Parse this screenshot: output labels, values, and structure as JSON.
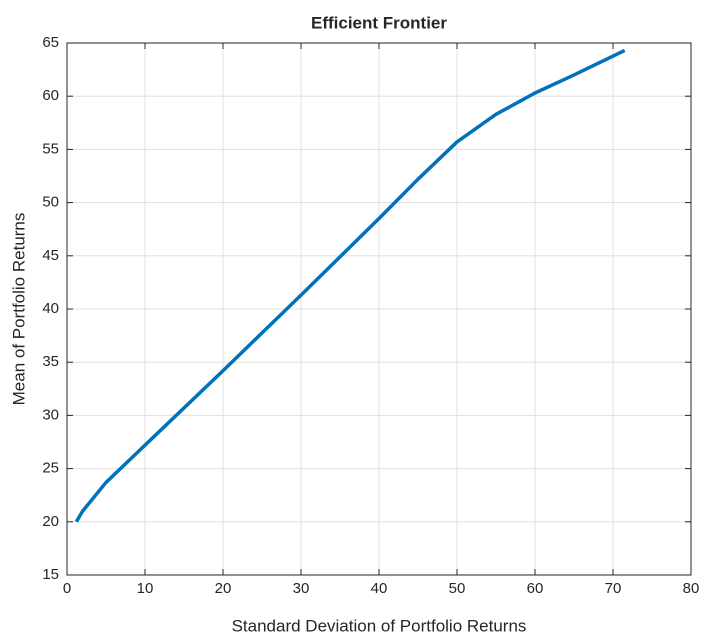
{
  "chart_data": {
    "type": "line",
    "title": "Efficient Frontier",
    "xlabel": "Standard Deviation of Portfolio Returns",
    "ylabel": "Mean of Portfolio Returns",
    "x": [
      1.2,
      2,
      5,
      10,
      20,
      30,
      40,
      45,
      50,
      55,
      60,
      65,
      71.5
    ],
    "values": [
      20,
      21,
      23.7,
      27.2,
      34.2,
      41.3,
      48.5,
      52.2,
      55.7,
      58.3,
      60.3,
      62,
      64.3
    ],
    "color": "#0072bd",
    "xlim": [
      0,
      80
    ],
    "xticks": [
      0,
      10,
      20,
      30,
      40,
      50,
      60,
      70,
      80
    ],
    "ylim": [
      15,
      65
    ],
    "yticks": [
      15,
      20,
      25,
      30,
      35,
      40,
      45,
      50,
      55,
      60,
      65
    ],
    "grid": true
  }
}
